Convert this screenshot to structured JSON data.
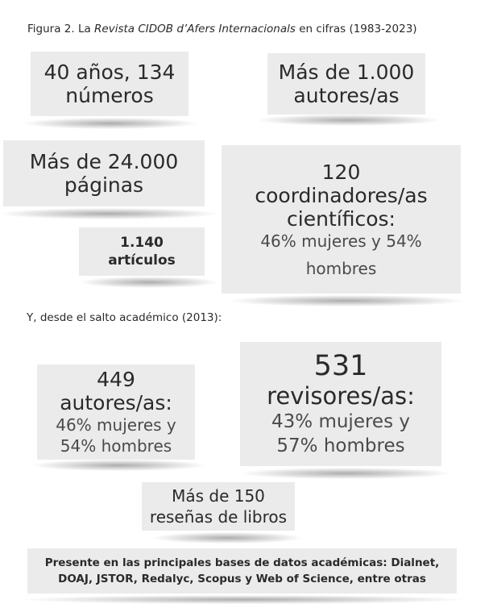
{
  "caption": {
    "prefix": "Figura 2. La ",
    "italic": "Revista CIDOB d’Afers Internacionals",
    "suffix": " en cifras (1983-2023)"
  },
  "stats": {
    "years": {
      "line1": "40 años, 134",
      "line2": "números"
    },
    "authors_total": {
      "line1": "Más de 1.000",
      "line2": "autores/as"
    },
    "pages": {
      "line1": "Más de 24.000",
      "line2": "páginas"
    },
    "coordinators": {
      "line1": "120",
      "line2": "coordinadores/as",
      "line3": "científicos:",
      "line4": "46% mujeres y 54%",
      "line5": "hombres"
    },
    "articles": {
      "line1": "1.140",
      "line2": "artículos"
    }
  },
  "since_note": "Y, desde el salto académico (2013):",
  "academic": {
    "authors": {
      "line1": "449",
      "line2": "autores/as:",
      "line3": "46% mujeres y",
      "line4": "54% hombres"
    },
    "reviewers": {
      "line1": "531",
      "line2": "revisores/as:",
      "line3": "43% mujeres y",
      "line4": "57% hombres"
    },
    "reviews": {
      "line1": "Más de 150",
      "line2": "reseñas de libros"
    }
  },
  "footer": {
    "line1": "Presente en las principales bases de datos académicas: Dialnet,",
    "line2": "DOAJ, JSTOR, Redalyc, Scopus y Web of Science, entre otras"
  }
}
